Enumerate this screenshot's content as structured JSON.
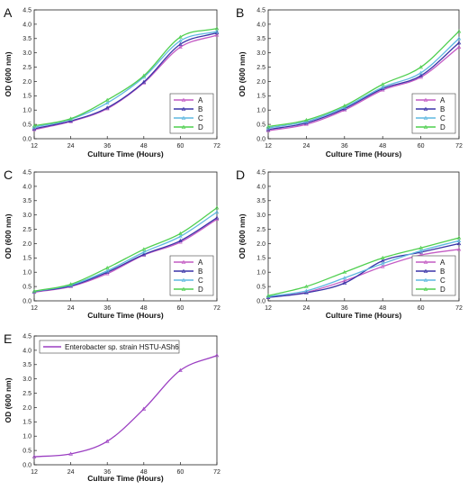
{
  "chart_data": [
    {
      "panel_label": "A",
      "type": "line",
      "xlabel": "Culture Time (Hours)",
      "ylabel": "OD (600 nm)",
      "x": [
        12,
        24,
        36,
        48,
        60,
        72
      ],
      "xlim": [
        12,
        72
      ],
      "ylim": [
        0,
        4.5
      ],
      "yticks": [
        "0.0",
        "0.5",
        "1.0",
        "1.5",
        "2.0",
        "2.5",
        "3.0",
        "3.5",
        "4.0",
        "4.5"
      ],
      "legend_position": "lower-right",
      "series": [
        {
          "name": "A",
          "color": "#c45bc4",
          "values": [
            0.32,
            0.6,
            1.05,
            1.95,
            3.2,
            3.62
          ]
        },
        {
          "name": "B",
          "color": "#3a34a8",
          "values": [
            0.35,
            0.62,
            1.08,
            1.98,
            3.3,
            3.7
          ]
        },
        {
          "name": "C",
          "color": "#5fb8e0",
          "values": [
            0.4,
            0.68,
            1.25,
            2.15,
            3.42,
            3.75
          ]
        },
        {
          "name": "D",
          "color": "#4fcf4f",
          "values": [
            0.45,
            0.7,
            1.35,
            2.2,
            3.55,
            3.85
          ]
        }
      ]
    },
    {
      "panel_label": "B",
      "type": "line",
      "xlabel": "Culture Time (Hours)",
      "ylabel": "OD (600 nm)",
      "x": [
        12,
        24,
        36,
        48,
        60,
        72
      ],
      "xlim": [
        12,
        72
      ],
      "ylim": [
        0,
        4.5
      ],
      "yticks": [
        "0.0",
        "0.5",
        "1.0",
        "1.5",
        "2.0",
        "2.5",
        "3.0",
        "3.5",
        "4.0",
        "4.5"
      ],
      "legend_position": "lower-right",
      "series": [
        {
          "name": "A",
          "color": "#c45bc4",
          "values": [
            0.28,
            0.5,
            1.0,
            1.7,
            2.15,
            3.2
          ]
        },
        {
          "name": "B",
          "color": "#3a34a8",
          "values": [
            0.32,
            0.55,
            1.05,
            1.75,
            2.2,
            3.35
          ]
        },
        {
          "name": "C",
          "color": "#5fb8e0",
          "values": [
            0.38,
            0.6,
            1.1,
            1.8,
            2.3,
            3.5
          ]
        },
        {
          "name": "D",
          "color": "#4fcf4f",
          "values": [
            0.42,
            0.65,
            1.15,
            1.9,
            2.5,
            3.75
          ]
        }
      ]
    },
    {
      "panel_label": "C",
      "type": "line",
      "xlabel": "Culture Time (Hours)",
      "ylabel": "OD (600 nm)",
      "x": [
        12,
        24,
        36,
        48,
        60,
        72
      ],
      "xlim": [
        12,
        72
      ],
      "ylim": [
        0,
        4.5
      ],
      "yticks": [
        "0.0",
        "0.5",
        "1.0",
        "1.5",
        "2.0",
        "2.5",
        "3.0",
        "3.5",
        "4.0",
        "4.5"
      ],
      "legend_position": "lower-right",
      "series": [
        {
          "name": "A",
          "color": "#c45bc4",
          "values": [
            0.3,
            0.5,
            0.95,
            1.6,
            2.05,
            2.85
          ]
        },
        {
          "name": "B",
          "color": "#3a34a8",
          "values": [
            0.32,
            0.52,
            1.0,
            1.62,
            2.1,
            2.9
          ]
        },
        {
          "name": "C",
          "color": "#5fb8e0",
          "values": [
            0.33,
            0.55,
            1.05,
            1.7,
            2.25,
            3.1
          ]
        },
        {
          "name": "D",
          "color": "#4fcf4f",
          "values": [
            0.34,
            0.58,
            1.15,
            1.8,
            2.35,
            3.25
          ]
        }
      ]
    },
    {
      "panel_label": "D",
      "type": "line",
      "xlabel": "Culture Time (Hours)",
      "ylabel": "OD (600 nm)",
      "x": [
        12,
        24,
        36,
        48,
        60,
        72
      ],
      "xlim": [
        12,
        72
      ],
      "ylim": [
        0,
        4.5
      ],
      "yticks": [
        "0.0",
        "0.5",
        "1.0",
        "1.5",
        "2.0",
        "2.5",
        "3.0",
        "3.5",
        "4.0",
        "4.5"
      ],
      "legend_position": "lower-right",
      "series": [
        {
          "name": "A",
          "color": "#c45bc4",
          "values": [
            0.12,
            0.3,
            0.7,
            1.2,
            1.6,
            1.8
          ]
        },
        {
          "name": "B",
          "color": "#3a34a8",
          "values": [
            0.12,
            0.28,
            0.62,
            1.4,
            1.7,
            2.0
          ]
        },
        {
          "name": "C",
          "color": "#5fb8e0",
          "values": [
            0.15,
            0.35,
            0.8,
            1.3,
            1.75,
            2.1
          ]
        },
        {
          "name": "D",
          "color": "#4fcf4f",
          "values": [
            0.18,
            0.5,
            1.0,
            1.5,
            1.85,
            2.2
          ]
        }
      ]
    },
    {
      "panel_label": "E",
      "type": "line",
      "xlabel": "Culture Time (Hours)",
      "ylabel": "OD (600 nm)",
      "x": [
        12,
        24,
        36,
        48,
        60,
        72
      ],
      "xlim": [
        12,
        72
      ],
      "ylim": [
        0,
        4.5
      ],
      "yticks": [
        "0.0",
        "0.5",
        "1.0",
        "1.5",
        "2.0",
        "2.5",
        "3.0",
        "3.5",
        "4.0",
        "4.5"
      ],
      "legend_position": "top-left",
      "series": [
        {
          "name": "Enterobacter sp. strain HSTU-ASh6",
          "color": "#9b3fc2",
          "values": [
            0.28,
            0.38,
            0.82,
            1.95,
            3.3,
            3.82
          ]
        }
      ]
    }
  ]
}
